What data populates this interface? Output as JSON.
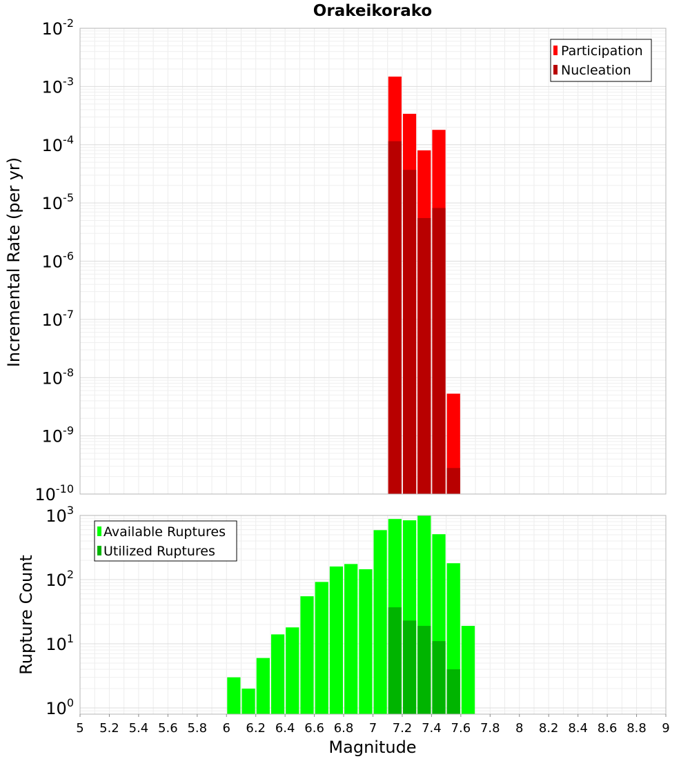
{
  "chart_data": [
    {
      "type": "bar",
      "title": "Orakeikorako",
      "ylabel": "Incremental Rate (per yr)",
      "xlabel": "",
      "xlim": [
        5,
        9
      ],
      "ylim": [
        1e-10,
        0.01
      ],
      "yscale": "log",
      "y_tick_labels": [
        {
          "base": "10",
          "exp": "-10"
        },
        {
          "base": "10",
          "exp": "-9"
        },
        {
          "base": "10",
          "exp": "-8"
        },
        {
          "base": "10",
          "exp": "-7"
        },
        {
          "base": "10",
          "exp": "-6"
        },
        {
          "base": "10",
          "exp": "-5"
        },
        {
          "base": "10",
          "exp": "-4"
        },
        {
          "base": "10",
          "exp": "-3"
        },
        {
          "base": "10",
          "exp": "-2"
        }
      ],
      "grid": true,
      "legend_position": "top-right",
      "bin_width": 0.1,
      "series": [
        {
          "name": "Participation",
          "color": "#ff0000",
          "x": [
            7.15,
            7.25,
            7.35,
            7.45,
            7.55
          ],
          "values": [
            0.00148,
            0.00034,
            8e-05,
            0.00018,
            5.3e-09
          ]
        },
        {
          "name": "Nucleation",
          "color": "#b80000",
          "x": [
            7.15,
            7.25,
            7.35,
            7.45,
            7.55
          ],
          "values": [
            0.000115,
            3.7e-05,
            5.5e-06,
            8.2e-06,
            2.8e-10
          ]
        }
      ]
    },
    {
      "type": "bar",
      "title": "",
      "ylabel": "Rupture Count",
      "xlabel": "Magnitude",
      "xlim": [
        5,
        9
      ],
      "ylim": [
        0.8,
        1000
      ],
      "yscale": "log",
      "y_tick_labels": [
        {
          "base": "10",
          "exp": "0"
        },
        {
          "base": "10",
          "exp": "1"
        },
        {
          "base": "10",
          "exp": "2"
        },
        {
          "base": "10",
          "exp": "3"
        }
      ],
      "x_tick_labels": [
        "5",
        "5.2",
        "5.4",
        "5.6",
        "5.8",
        "6",
        "6.2",
        "6.4",
        "6.6",
        "6.8",
        "7",
        "7.2",
        "7.4",
        "7.6",
        "7.8",
        "8",
        "8.2",
        "8.4",
        "8.6",
        "8.8",
        "9"
      ],
      "grid": true,
      "legend_position": "top-left",
      "bin_width": 0.1,
      "series": [
        {
          "name": "Available Ruptures",
          "color": "#00ff00",
          "x": [
            6.05,
            6.15,
            6.25,
            6.35,
            6.45,
            6.55,
            6.65,
            6.75,
            6.85,
            6.95,
            7.05,
            7.15,
            7.25,
            7.35,
            7.45,
            7.55,
            7.65
          ],
          "values": [
            3,
            2,
            6,
            14,
            18,
            55,
            92,
            160,
            175,
            145,
            590,
            880,
            840,
            1000,
            510,
            180,
            19
          ]
        },
        {
          "name": "Utilized Ruptures",
          "color": "#00b400",
          "x": [
            7.15,
            7.25,
            7.35,
            7.45,
            7.55
          ],
          "values": [
            37,
            23,
            19,
            11,
            4
          ]
        }
      ]
    }
  ]
}
